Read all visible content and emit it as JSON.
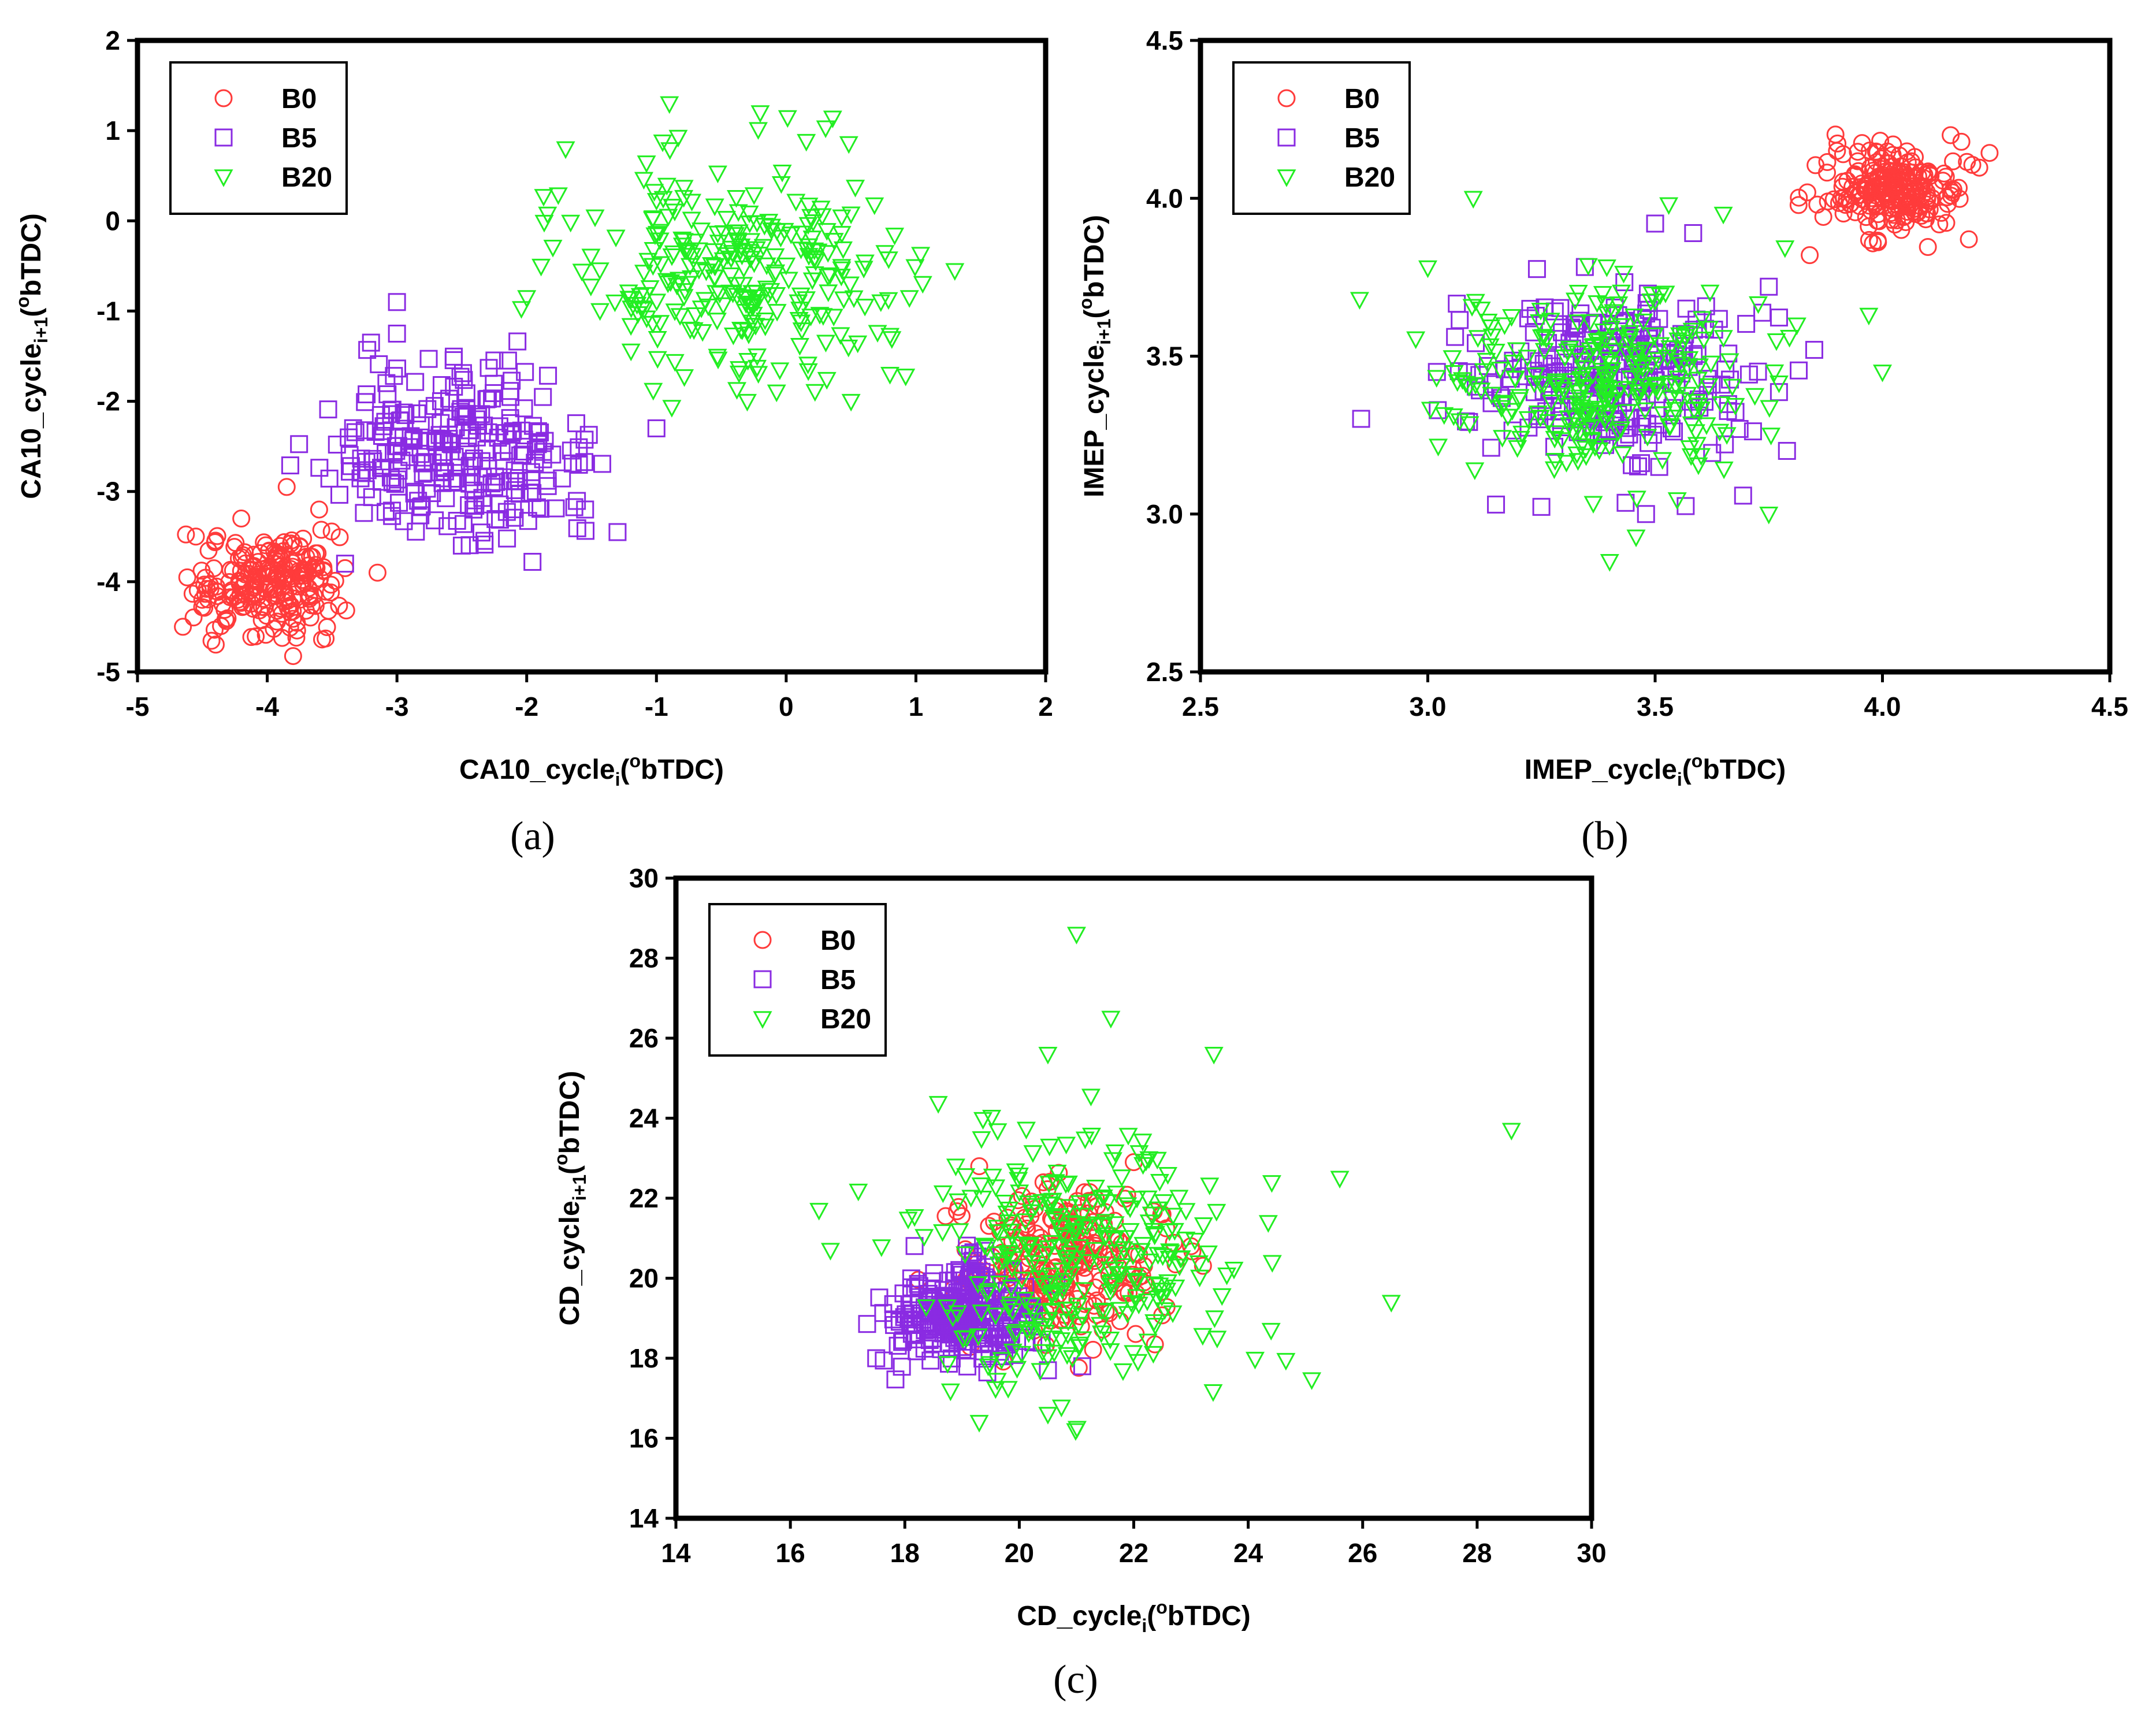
{
  "chart_data": [
    {
      "type": "scatter",
      "panel_label": "(a)",
      "xlabel": {
        "main": "CA10_cycle",
        "sub": "i",
        "open": "(",
        "sup": "o",
        "rest": "bTDC)"
      },
      "ylabel": {
        "main": "CA10_cycle",
        "sub": "i+1",
        "open": "(",
        "sup": "o",
        "rest": "bTDC)"
      },
      "xlim": [
        -5,
        2
      ],
      "ylim": [
        -5,
        2
      ],
      "xticks": [
        "-5",
        "-4",
        "-3",
        "-2",
        "-1",
        "0",
        "1",
        "2"
      ],
      "yticks": [
        "-5",
        "-4",
        "-3",
        "-2",
        "-1",
        "0",
        "1",
        "2"
      ],
      "grid": false,
      "legend_position": "top-left",
      "series": [
        {
          "name": "B0",
          "marker": "circle",
          "color": "#ff3b3b",
          "cluster": {
            "cx": -4.0,
            "cy": -4.0,
            "sx": 0.28,
            "sy": 0.27,
            "n": 220
          },
          "points": [
            [
              -4.65,
              -4.5
            ],
            [
              -3.55,
              -4.63
            ],
            [
              -3.15,
              -3.9
            ],
            [
              -3.85,
              -2.95
            ],
            [
              -4.2,
              -3.3
            ],
            [
              -3.6,
              -3.2
            ],
            [
              -4.55,
              -3.5
            ],
            [
              -3.4,
              -3.85
            ]
          ]
        },
        {
          "name": "B5",
          "marker": "square",
          "color": "#8a2be2",
          "cluster": {
            "cx": -2.55,
            "cy": -2.6,
            "sx": 0.5,
            "sy": 0.45,
            "n": 260
          },
          "points": [
            [
              -3.0,
              -0.9
            ],
            [
              -3.2,
              -1.35
            ],
            [
              -3.0,
              -1.25
            ],
            [
              -1.3,
              -3.45
            ],
            [
              -1.0,
              -2.3
            ],
            [
              -1.55,
              -3.2
            ],
            [
              -3.4,
              -3.8
            ],
            [
              -2.5,
              -3.6
            ]
          ]
        },
        {
          "name": "B20",
          "marker": "triangle-down",
          "color": "#22ee22",
          "cluster": {
            "cx": -0.35,
            "cy": -0.5,
            "sx": 0.6,
            "sy": 0.6,
            "n": 280
          },
          "points": [
            [
              -0.9,
              1.3
            ],
            [
              -0.2,
              1.2
            ],
            [
              -1.7,
              0.8
            ],
            [
              1.3,
              -0.55
            ],
            [
              -2.0,
              -0.85
            ],
            [
              -0.3,
              -2.0
            ],
            [
              0.5,
              -2.0
            ],
            [
              0.8,
              -1.7
            ],
            [
              0.95,
              -0.85
            ]
          ]
        }
      ]
    },
    {
      "type": "scatter",
      "panel_label": "(b)",
      "xlabel": {
        "main": "IMEP_cycle",
        "sub": "i",
        "open": "(",
        "sup": "o",
        "rest": "bTDC)"
      },
      "ylabel": {
        "main": "IMEP_cycle",
        "sub": "i+1",
        "open": "(",
        "sup": "o",
        "rest": "bTDC)"
      },
      "xlim": [
        2.5,
        4.5
      ],
      "ylim": [
        2.5,
        4.5
      ],
      "xticks": [
        "2.5",
        "3.0",
        "3.5",
        "4.0",
        "4.5"
      ],
      "yticks": [
        "2.5",
        "3.0",
        "3.5",
        "4.0",
        "4.5"
      ],
      "grid": false,
      "legend_position": "top-left",
      "series": [
        {
          "name": "B0",
          "marker": "circle",
          "color": "#ff3b3b",
          "cluster": {
            "cx": 4.03,
            "cy": 4.03,
            "sx": 0.07,
            "sy": 0.07,
            "n": 230
          },
          "points": [
            [
              3.84,
              3.82
            ],
            [
              3.88,
              3.99
            ],
            [
              4.19,
              3.87
            ],
            [
              3.9,
              4.15
            ],
            [
              4.15,
              4.2
            ]
          ]
        },
        {
          "name": "B5",
          "marker": "square",
          "color": "#8a2be2",
          "cluster": {
            "cx": 3.42,
            "cy": 3.45,
            "sx": 0.15,
            "sy": 0.14,
            "n": 260
          },
          "points": [
            [
              3.02,
              3.45
            ],
            [
              3.15,
              3.03
            ],
            [
              3.5,
              3.92
            ],
            [
              3.85,
              3.52
            ],
            [
              3.79,
              3.2
            ],
            [
              3.48,
              3.0
            ],
            [
              3.75,
              3.72
            ]
          ]
        },
        {
          "name": "B20",
          "marker": "triangle-down",
          "color": "#22ee22",
          "cluster": {
            "cx": 3.4,
            "cy": 3.42,
            "sx": 0.17,
            "sy": 0.16,
            "n": 280
          },
          "points": [
            [
              2.85,
              3.68
            ],
            [
              3.0,
              3.78
            ],
            [
              3.1,
              4.0
            ],
            [
              3.4,
              2.85
            ],
            [
              3.75,
              3.0
            ],
            [
              3.97,
              3.63
            ],
            [
              4.0,
              3.45
            ],
            [
              3.65,
              3.95
            ],
            [
              3.53,
              3.98
            ]
          ]
        }
      ]
    },
    {
      "type": "scatter",
      "panel_label": "(c)",
      "xlabel": {
        "main": "CD_cycle",
        "sub": "i",
        "open": "(",
        "sup": "o",
        "rest": "bTDC)"
      },
      "ylabel": {
        "main": "CD_cycle",
        "sub": "i+1",
        "open": "(",
        "sup": "o",
        "rest": "bTDC)"
      },
      "xlim": [
        14,
        30
      ],
      "ylim": [
        14,
        30
      ],
      "xticks": [
        "14",
        "16",
        "18",
        "20",
        "22",
        "24",
        "26",
        "28",
        "30"
      ],
      "yticks": [
        "14",
        "16",
        "18",
        "20",
        "22",
        "24",
        "26",
        "28",
        "30"
      ],
      "grid": false,
      "legend_position": "top-left",
      "series": [
        {
          "name": "B0",
          "marker": "circle",
          "color": "#ff3b3b",
          "cluster": {
            "cx": 20.8,
            "cy": 20.3,
            "sx": 0.9,
            "sy": 0.9,
            "n": 240
          },
          "points": [
            [
              19.3,
              22.8
            ],
            [
              22.0,
              22.9
            ],
            [
              23.0,
              20.8
            ]
          ]
        },
        {
          "name": "B5",
          "marker": "square",
          "color": "#8a2be2",
          "cluster": {
            "cx": 19.0,
            "cy": 19.1,
            "sx": 0.6,
            "sy": 0.6,
            "n": 280
          },
          "points": [
            [
              17.5,
              18.0
            ],
            [
              20.5,
              17.7
            ],
            [
              21.1,
              17.8
            ]
          ]
        },
        {
          "name": "B20",
          "marker": "triangle-down",
          "color": "#22ee22",
          "cluster": {
            "cx": 21.0,
            "cy": 20.6,
            "sx": 1.3,
            "sy": 1.5,
            "n": 300
          },
          "points": [
            [
              21.0,
              28.6
            ],
            [
              21.6,
              26.5
            ],
            [
              20.5,
              25.6
            ],
            [
              23.4,
              25.6
            ],
            [
              28.6,
              23.7
            ],
            [
              26.5,
              19.4
            ],
            [
              16.5,
              21.7
            ],
            [
              16.7,
              20.7
            ],
            [
              19.3,
              16.4
            ],
            [
              20.5,
              16.6
            ],
            [
              24.4,
              18.7
            ],
            [
              25.6,
              22.5
            ]
          ]
        }
      ]
    }
  ]
}
